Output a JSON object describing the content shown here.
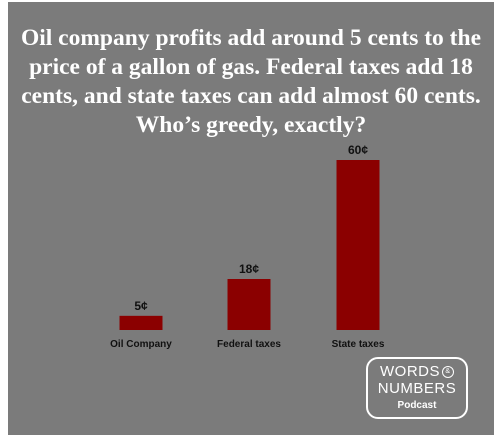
{
  "headline": "Oil company profits add around 5 cents to the price of a gallon of gas. Federal taxes add 18 cents, and state taxes can add almost 60 cents. Who’s greedy, exactly?",
  "colors": {
    "background": "#7b7b7b",
    "bar": "#8b0000",
    "text": "#ffffff"
  },
  "chart_data": {
    "type": "bar",
    "categories": [
      "Oil Company",
      "Federal taxes",
      "State taxes"
    ],
    "values": [
      5,
      18,
      60
    ],
    "data_labels": [
      "5¢",
      "18¢",
      "60¢"
    ],
    "ylim": [
      0,
      60
    ],
    "grid": false,
    "legend": "none"
  },
  "logo": {
    "line1": "WORDS",
    "ampersand": "&",
    "line2": "NUMBERS",
    "line3": "Podcast"
  }
}
